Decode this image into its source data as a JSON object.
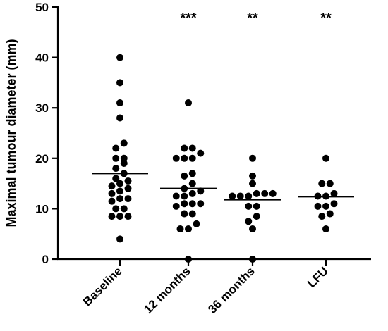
{
  "chart_data": {
    "type": "scatter",
    "title": "",
    "xlabel": "",
    "ylabel": "Maximal tumour diameter (mm)",
    "ylim": [
      0,
      50
    ],
    "yticks": [
      0,
      10,
      20,
      30,
      40,
      50
    ],
    "grid": false,
    "categories": [
      "Baseline",
      "12 months",
      "36 months",
      "LFU"
    ],
    "significance": [
      "",
      "***",
      "**",
      "**"
    ],
    "means": [
      17,
      14,
      11.8,
      12.4
    ],
    "groups": [
      [
        40,
        35,
        31,
        28,
        23,
        22,
        20,
        20,
        19,
        18,
        17,
        16,
        15.5,
        15,
        14.5,
        14,
        13.5,
        13,
        12,
        12,
        11.5,
        10,
        10,
        8.5,
        8.5,
        8.5,
        4
      ],
      [
        31,
        22,
        22,
        21,
        20,
        20,
        20,
        17,
        16.5,
        15,
        14,
        13.5,
        13,
        12.5,
        12.5,
        11,
        11,
        11,
        10.5,
        9,
        9,
        7,
        6,
        6,
        0
      ],
      [
        20,
        16.5,
        15,
        13,
        13,
        13,
        12.5,
        12.5,
        12.5,
        10.5,
        10.5,
        8.5,
        7.5,
        6,
        0
      ],
      [
        20,
        15,
        15,
        13,
        12.5,
        12.5,
        11,
        10.5,
        10.5,
        9,
        8.5,
        6
      ]
    ]
  }
}
